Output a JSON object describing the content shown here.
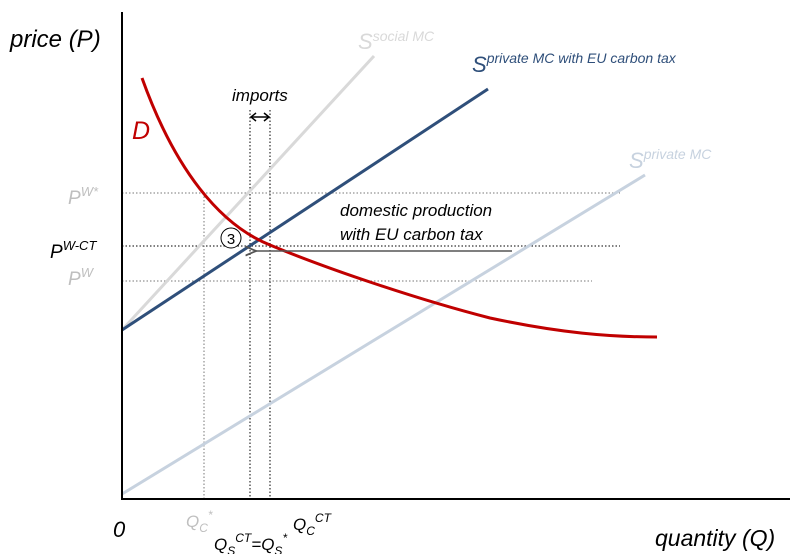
{
  "axes": {
    "y_label": "price (P)",
    "x_label": "quantity (Q)",
    "origin": "0"
  },
  "curves": {
    "demand": {
      "main": "D"
    },
    "social_mc": {
      "main": "S",
      "sup": "social MC"
    },
    "private_mc_tax": {
      "main": "S",
      "sup": "private MC with EU carbon tax"
    },
    "private_mc": {
      "main": "S",
      "sup": "private MC"
    }
  },
  "prices": {
    "pw_star": {
      "main": "P",
      "sup": "W*"
    },
    "pw_ct": {
      "main": "P",
      "sup": "W-CT"
    },
    "pw": {
      "main": "P",
      "sup": "W"
    }
  },
  "quantities": {
    "qc_star": {
      "main": "Q",
      "sub": "C",
      "sup": "*"
    },
    "qc_ct": {
      "main": "Q",
      "sub": "C",
      "sup": "CT"
    },
    "qs": {
      "main1": "Q",
      "sub1": "S",
      "sup1": "CT",
      "eq": "=",
      "main2": "Q",
      "sub2": "S",
      "sup2": "*"
    }
  },
  "annotations": {
    "imports": "imports",
    "domestic_line1": "domestic production",
    "domestic_line2": "with EU carbon tax",
    "marker": "3"
  },
  "colors": {
    "demand": "#c00000",
    "tax_supply": "#2f4f7a",
    "private_supply": "#c7d2df",
    "social_supply": "#d9d9d9",
    "muted_text": "#bfbfbf",
    "axis": "#000000"
  }
}
